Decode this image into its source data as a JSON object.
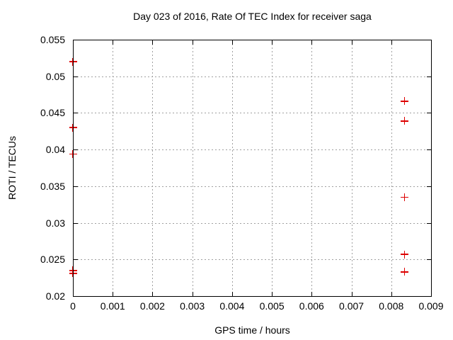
{
  "colors": {
    "background": "#ffffff",
    "axis": "#000000",
    "grid": "#a0a0a0",
    "marker": "#dd0000"
  },
  "chart_data": {
    "type": "scatter",
    "title": "Day 023 of 2016, Rate Of TEC Index for receiver saga",
    "xlabel": "GPS time / hours",
    "ylabel": "ROTI / TECUs",
    "xlim": [
      0,
      0.009
    ],
    "ylim": [
      0.02,
      0.055
    ],
    "grid": true,
    "legend": "none",
    "marker_style": "plus",
    "xticks": {
      "values": [
        0,
        0.001,
        0.002,
        0.003,
        0.004,
        0.005,
        0.006,
        0.007,
        0.008,
        0.009
      ],
      "labels": [
        "0",
        "0.001",
        "0.002",
        "0.003",
        "0.004",
        "0.005",
        "0.006",
        "0.007",
        "0.008",
        "0.009"
      ]
    },
    "yticks": {
      "values": [
        0.02,
        0.025,
        0.03,
        0.035,
        0.04,
        0.045,
        0.05,
        0.055
      ],
      "labels": [
        "0.02",
        "0.025",
        "0.03",
        "0.035",
        "0.04",
        "0.045",
        "0.05",
        "0.055"
      ]
    },
    "series": [
      {
        "name": "ROTI",
        "marker": "plus",
        "color": "#dd0000",
        "points": [
          [
            0,
            0.052
          ],
          [
            0,
            0.043
          ],
          [
            0,
            0.0394
          ],
          [
            0,
            0.0235
          ],
          [
            0,
            0.0231
          ],
          [
            0.00833,
            0.0466
          ],
          [
            0.00833,
            0.0439
          ],
          [
            0.00833,
            0.0335
          ],
          [
            0.00833,
            0.0257
          ],
          [
            0.00833,
            0.0233
          ]
        ]
      }
    ]
  }
}
